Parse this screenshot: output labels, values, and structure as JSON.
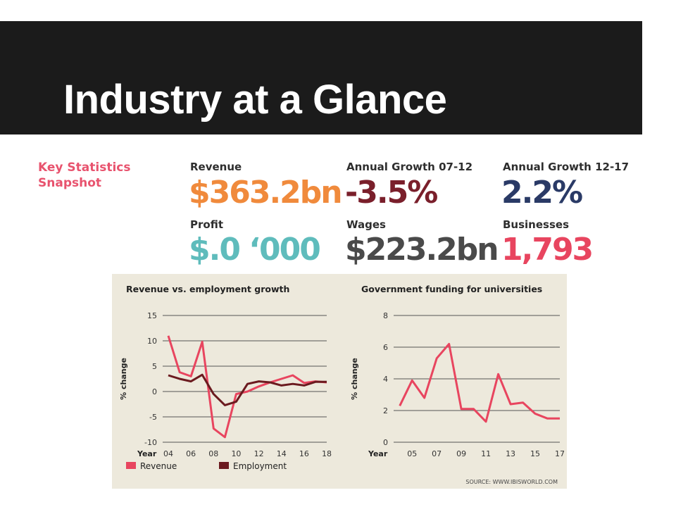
{
  "slide": {
    "title": "Industry at a Glance"
  },
  "snapshot": {
    "heading_line1": "Key Statistics",
    "heading_line2": "Snapshot",
    "stats": [
      {
        "label": "Revenue",
        "value": "$363.2bn",
        "color": "#f08a3c"
      },
      {
        "label": "Annual Growth 07-12",
        "value": "-3.5%",
        "color": "#7a1f2b"
      },
      {
        "label": "Annual Growth 12-17",
        "value": "2.2%",
        "color": "#2a3a66"
      },
      {
        "label": "Profit",
        "value": "$.0 ‘000",
        "color": "#5fbcbc"
      },
      {
        "label": "Wages",
        "value": "$223.2bn",
        "color": "#4a4a4a"
      },
      {
        "label": "Businesses",
        "value": "1,793",
        "color": "#e8455f"
      }
    ]
  },
  "source": "SOURCE: WWW.IBISWORLD.COM",
  "colors": {
    "revenue": "#e8455f",
    "employment": "#6b1a1f",
    "panel": "#ede9dc"
  },
  "chart_data": [
    {
      "type": "line",
      "title": "Revenue vs. employment growth",
      "xlabel": "Year",
      "ylabel": "% change",
      "ylim": [
        -10,
        15
      ],
      "yticks": [
        15,
        10,
        5,
        0,
        -5,
        -10
      ],
      "xlim": [
        2003.5,
        2018
      ],
      "xticks": [
        2004,
        2006,
        2008,
        2010,
        2012,
        2014,
        2016,
        2018
      ],
      "xtick_labels": [
        "04",
        "06",
        "08",
        "10",
        "12",
        "14",
        "16",
        "18"
      ],
      "legend_position": "bottom-left",
      "series": [
        {
          "name": "Revenue",
          "x": [
            2004,
            2005,
            2006,
            2007,
            2008,
            2009,
            2010,
            2011,
            2012,
            2013,
            2014,
            2015,
            2016,
            2017,
            2018
          ],
          "values": [
            11,
            3.8,
            3,
            9.8,
            -7.3,
            -9,
            -0.5,
            0,
            1,
            1.8,
            2.5,
            3.2,
            1.7,
            2,
            1.8
          ]
        },
        {
          "name": "Employment",
          "x": [
            2004,
            2005,
            2006,
            2007,
            2008,
            2009,
            2010,
            2011,
            2012,
            2013,
            2014,
            2015,
            2016,
            2017,
            2018
          ],
          "values": [
            3.2,
            2.5,
            2,
            3.3,
            -0.5,
            -2.7,
            -2,
            1.5,
            2,
            1.8,
            1.2,
            1.5,
            1.2,
            1.9,
            1.9
          ]
        }
      ]
    },
    {
      "type": "line",
      "title": "Government funding for universities",
      "xlabel": "Year",
      "ylabel": "% change",
      "ylim": [
        0,
        8
      ],
      "yticks": [
        8,
        6,
        4,
        2,
        0
      ],
      "xlim": [
        2003.5,
        2017
      ],
      "xticks": [
        2005,
        2007,
        2009,
        2011,
        2013,
        2015,
        2017
      ],
      "xtick_labels": [
        "05",
        "07",
        "09",
        "11",
        "13",
        "15",
        "17"
      ],
      "series": [
        {
          "name": "",
          "x": [
            2004,
            2005,
            2006,
            2007,
            2008,
            2009,
            2010,
            2011,
            2012,
            2013,
            2014,
            2015,
            2016,
            2017
          ],
          "values": [
            2.3,
            3.9,
            2.8,
            5.3,
            6.2,
            2.1,
            2.1,
            1.3,
            4.3,
            2.4,
            2.5,
            1.8,
            1.5,
            1.5
          ]
        }
      ]
    }
  ]
}
